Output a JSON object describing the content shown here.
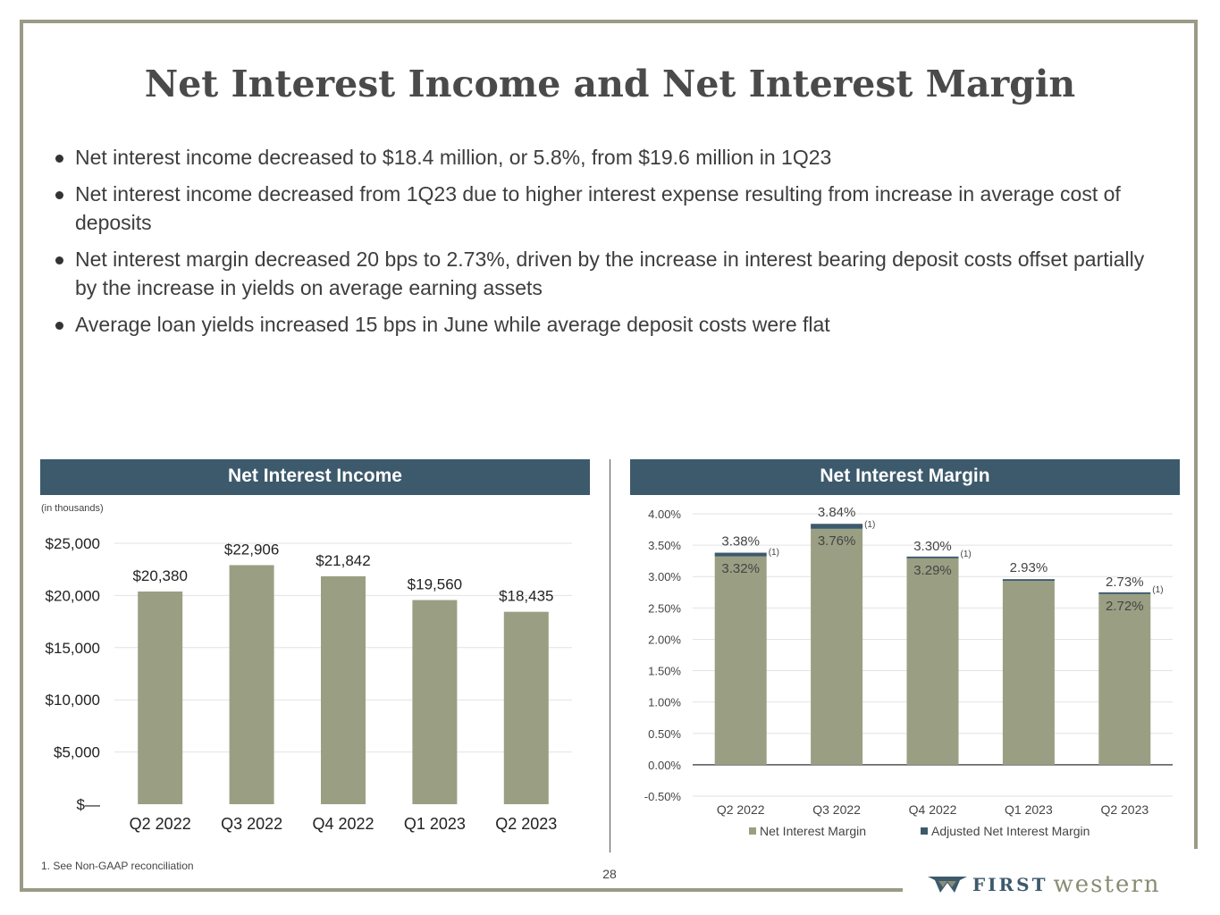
{
  "title": "Net Interest Income and Net Interest Margin",
  "bullets": [
    "Net interest income decreased to $18.4 million, or 5.8%, from $19.6 million in 1Q23",
    "Net interest income decreased from 1Q23 due to higher interest expense resulting from increase in average cost of deposits",
    "Net interest margin decreased 20 bps to 2.73%, driven by the increase in interest bearing deposit costs offset partially by the increase in yields on average earning assets",
    "Average loan yields increased 15 bps in June while average deposit costs were flat"
  ],
  "left_panel": {
    "header": "Net Interest Income",
    "unit_note": "(in thousands)"
  },
  "right_panel": {
    "header": "Net Interest Margin"
  },
  "footnote": "1.  See Non-GAAP reconciliation",
  "page_number": "28",
  "logo": {
    "first": "FIRST",
    "second": "western"
  },
  "colors": {
    "bar": "#9a9f83",
    "adjusted": "#3d5a6c",
    "header": "#3d5a6c",
    "frame": "#9a9a86"
  },
  "chart_data": [
    {
      "type": "bar",
      "title": "Net Interest Income",
      "categories": [
        "Q2 2022",
        "Q3 2022",
        "Q4 2022",
        "Q1 2023",
        "Q2 2023"
      ],
      "values": [
        20380,
        22906,
        21842,
        19560,
        18435
      ],
      "data_labels": [
        "$20,380",
        "$22,906",
        "$21,842",
        "$19,560",
        "$18,435"
      ],
      "ylim": [
        0,
        25000
      ],
      "yticks": [
        0,
        5000,
        10000,
        15000,
        20000,
        25000
      ],
      "ytick_labels": [
        "$—",
        "$5,000",
        "$10,000",
        "$15,000",
        "$20,000",
        "$25,000"
      ],
      "ylabel": "(in thousands)",
      "grid": true
    },
    {
      "type": "bar",
      "title": "Net Interest Margin",
      "categories": [
        "Q2 2022",
        "Q3 2022",
        "Q4 2022",
        "Q1 2023",
        "Q2 2023"
      ],
      "series": [
        {
          "name": "Net Interest Margin",
          "values": [
            3.32,
            3.76,
            3.29,
            2.93,
            2.72
          ],
          "labels": [
            "3.32%",
            "3.76%",
            "3.29%",
            "2.93%",
            "2.72%"
          ]
        },
        {
          "name": "Adjusted Net Interest Margin",
          "values": [
            3.38,
            3.84,
            3.3,
            2.93,
            2.73
          ],
          "labels": [
            "3.38%",
            "3.84%",
            "3.30%",
            "",
            "2.73%"
          ]
        }
      ],
      "footnote_marker": "(1)",
      "footnote_flags": [
        true,
        true,
        true,
        false,
        true
      ],
      "ylim": [
        -0.5,
        4.0
      ],
      "yticks": [
        -0.5,
        0,
        0.5,
        1.0,
        1.5,
        2.0,
        2.5,
        3.0,
        3.5,
        4.0
      ],
      "ytick_labels": [
        "-0.50%",
        "0.00%",
        "0.50%",
        "1.00%",
        "1.50%",
        "2.00%",
        "2.50%",
        "3.00%",
        "3.50%",
        "4.00%"
      ],
      "legend": "bottom",
      "grid": true
    }
  ]
}
